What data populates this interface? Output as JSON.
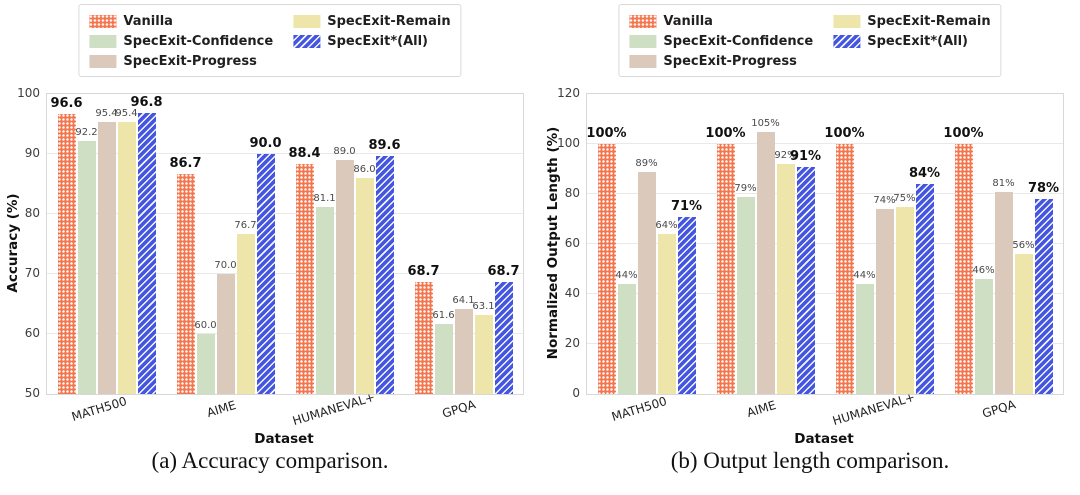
{
  "legend": {
    "entries": [
      {
        "label": "Vanilla",
        "color": "#f4764f",
        "pattern": "dots"
      },
      {
        "label": "SpecExit-Confidence",
        "color": "#cfdfc4",
        "pattern": "solid"
      },
      {
        "label": "SpecExit-Progress",
        "color": "#dbcabb",
        "pattern": "solid"
      },
      {
        "label": "SpecExit-Remain",
        "color": "#eee5ab",
        "pattern": "solid"
      },
      {
        "label": "SpecExit*(All)",
        "color": "#4456e0",
        "pattern": "diag"
      }
    ]
  },
  "chart_data": [
    {
      "type": "bar",
      "categories": [
        "MATH500",
        "AIME",
        "HUMANEVAL+",
        "GPQA"
      ],
      "series": [
        {
          "name": "Vanilla",
          "values": [
            96.6,
            86.7,
            88.4,
            68.7
          ],
          "labels": [
            "96.6",
            "86.7",
            "88.4",
            "68.7"
          ],
          "emphasis": true
        },
        {
          "name": "SpecExit-Confidence",
          "values": [
            92.2,
            60.0,
            81.1,
            61.6
          ],
          "labels": [
            "92.2",
            "60.0",
            "81.1",
            "61.6"
          ],
          "emphasis": false
        },
        {
          "name": "SpecExit-Progress",
          "values": [
            95.4,
            70.0,
            89.0,
            64.1
          ],
          "labels": [
            "95.4",
            "70.0",
            "89.0",
            "64.1"
          ],
          "emphasis": false
        },
        {
          "name": "SpecExit-Remain",
          "values": [
            95.4,
            76.7,
            86.0,
            63.1
          ],
          "labels": [
            "95.4",
            "76.7",
            "86.0",
            "63.1"
          ],
          "emphasis": false
        },
        {
          "name": "SpecExit*(All)",
          "values": [
            96.8,
            90.0,
            89.6,
            68.7
          ],
          "labels": [
            "96.8",
            "90.0",
            "89.6",
            "68.7"
          ],
          "emphasis": true
        }
      ],
      "xlabel": "Dataset",
      "ylabel": "Accuracy (%)",
      "ylim": [
        50,
        100
      ],
      "yticks": [
        50,
        60,
        70,
        80,
        90,
        100
      ],
      "grid": true,
      "legend_position": "top",
      "caption": "(a) Accuracy comparison."
    },
    {
      "type": "bar",
      "categories": [
        "MATH500",
        "AIME",
        "HUMANEVAL+",
        "GPQA"
      ],
      "series": [
        {
          "name": "Vanilla",
          "values": [
            100,
            100,
            100,
            100
          ],
          "labels": [
            "100%",
            "100%",
            "100%",
            "100%"
          ],
          "emphasis": true
        },
        {
          "name": "SpecExit-Confidence",
          "values": [
            44,
            79,
            44,
            46
          ],
          "labels": [
            "44%",
            "79%",
            "44%",
            "46%"
          ],
          "emphasis": false
        },
        {
          "name": "SpecExit-Progress",
          "values": [
            89,
            105,
            74,
            81
          ],
          "labels": [
            "89%",
            "105%",
            "74%",
            "81%"
          ],
          "emphasis": false
        },
        {
          "name": "SpecExit-Remain",
          "values": [
            64,
            92,
            75,
            56
          ],
          "labels": [
            "64%",
            "92%",
            "75%",
            "56%"
          ],
          "emphasis": false
        },
        {
          "name": "SpecExit*(All)",
          "values": [
            71,
            91,
            84,
            78
          ],
          "labels": [
            "71%",
            "91%",
            "84%",
            "78%"
          ],
          "emphasis": true
        }
      ],
      "xlabel": "Dataset",
      "ylabel": "Normalized Output Length (%)",
      "ylim": [
        0,
        120
      ],
      "yticks": [
        0,
        20,
        40,
        60,
        80,
        100,
        120
      ],
      "grid": true,
      "legend_position": "top",
      "caption": "(b) Output length comparison."
    }
  ]
}
